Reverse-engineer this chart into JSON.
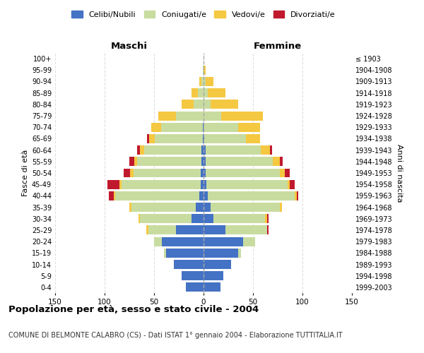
{
  "age_groups": [
    "0-4",
    "5-9",
    "10-14",
    "15-19",
    "20-24",
    "25-29",
    "30-34",
    "35-39",
    "40-44",
    "45-49",
    "50-54",
    "55-59",
    "60-64",
    "65-69",
    "70-74",
    "75-79",
    "80-84",
    "85-89",
    "90-94",
    "95-99",
    "100+"
  ],
  "males": {
    "celibi": [
      18,
      22,
      30,
      38,
      42,
      28,
      12,
      8,
      4,
      3,
      3,
      2,
      2,
      1,
      1,
      0,
      0,
      0,
      0,
      0,
      0
    ],
    "coniugati": [
      0,
      0,
      0,
      2,
      8,
      28,
      52,
      65,
      85,
      80,
      68,
      65,
      58,
      48,
      42,
      28,
      10,
      6,
      2,
      1,
      0
    ],
    "vedovi": [
      0,
      0,
      0,
      0,
      0,
      2,
      2,
      2,
      2,
      2,
      3,
      3,
      4,
      6,
      10,
      18,
      12,
      6,
      2,
      0,
      0
    ],
    "divorziati": [
      0,
      0,
      0,
      0,
      0,
      0,
      0,
      0,
      5,
      12,
      7,
      5,
      3,
      2,
      0,
      0,
      0,
      0,
      0,
      0,
      0
    ]
  },
  "females": {
    "nubili": [
      17,
      20,
      28,
      35,
      40,
      22,
      10,
      7,
      4,
      3,
      2,
      2,
      2,
      1,
      0,
      0,
      0,
      0,
      0,
      0,
      0
    ],
    "coniugate": [
      0,
      0,
      0,
      3,
      12,
      42,
      52,
      70,
      88,
      82,
      75,
      68,
      56,
      42,
      35,
      18,
      7,
      4,
      2,
      0,
      0
    ],
    "vedove": [
      0,
      0,
      0,
      0,
      0,
      0,
      2,
      2,
      2,
      2,
      5,
      7,
      9,
      14,
      22,
      42,
      28,
      18,
      8,
      2,
      0
    ],
    "divorziate": [
      0,
      0,
      0,
      0,
      0,
      2,
      2,
      0,
      2,
      5,
      5,
      3,
      2,
      0,
      0,
      0,
      0,
      0,
      0,
      0,
      0
    ]
  },
  "colors": {
    "celibi": "#4472C4",
    "coniugati": "#c8dca0",
    "vedovi": "#f5c842",
    "divorziati": "#c0192e"
  },
  "xlim": 150,
  "xticks": [
    -150,
    -100,
    -50,
    0,
    50,
    100,
    150
  ],
  "title": "Popolazione per età, sesso e stato civile - 2004",
  "subtitle": "COMUNE DI BELMONTE CALABRO (CS) - Dati ISTAT 1° gennaio 2004 - Elaborazione TUTTITALIA.IT",
  "ylabel": "Fasce di età",
  "ylabel_right": "Anni di nascita",
  "birth_years": [
    "1999-2003",
    "1994-1998",
    "1989-1993",
    "1984-1988",
    "1979-1983",
    "1974-1978",
    "1969-1973",
    "1964-1968",
    "1959-1963",
    "1954-1958",
    "1949-1953",
    "1944-1948",
    "1939-1943",
    "1934-1938",
    "1929-1933",
    "1924-1928",
    "1919-1923",
    "1914-1918",
    "1909-1913",
    "1904-1908",
    "≤ 1903"
  ]
}
